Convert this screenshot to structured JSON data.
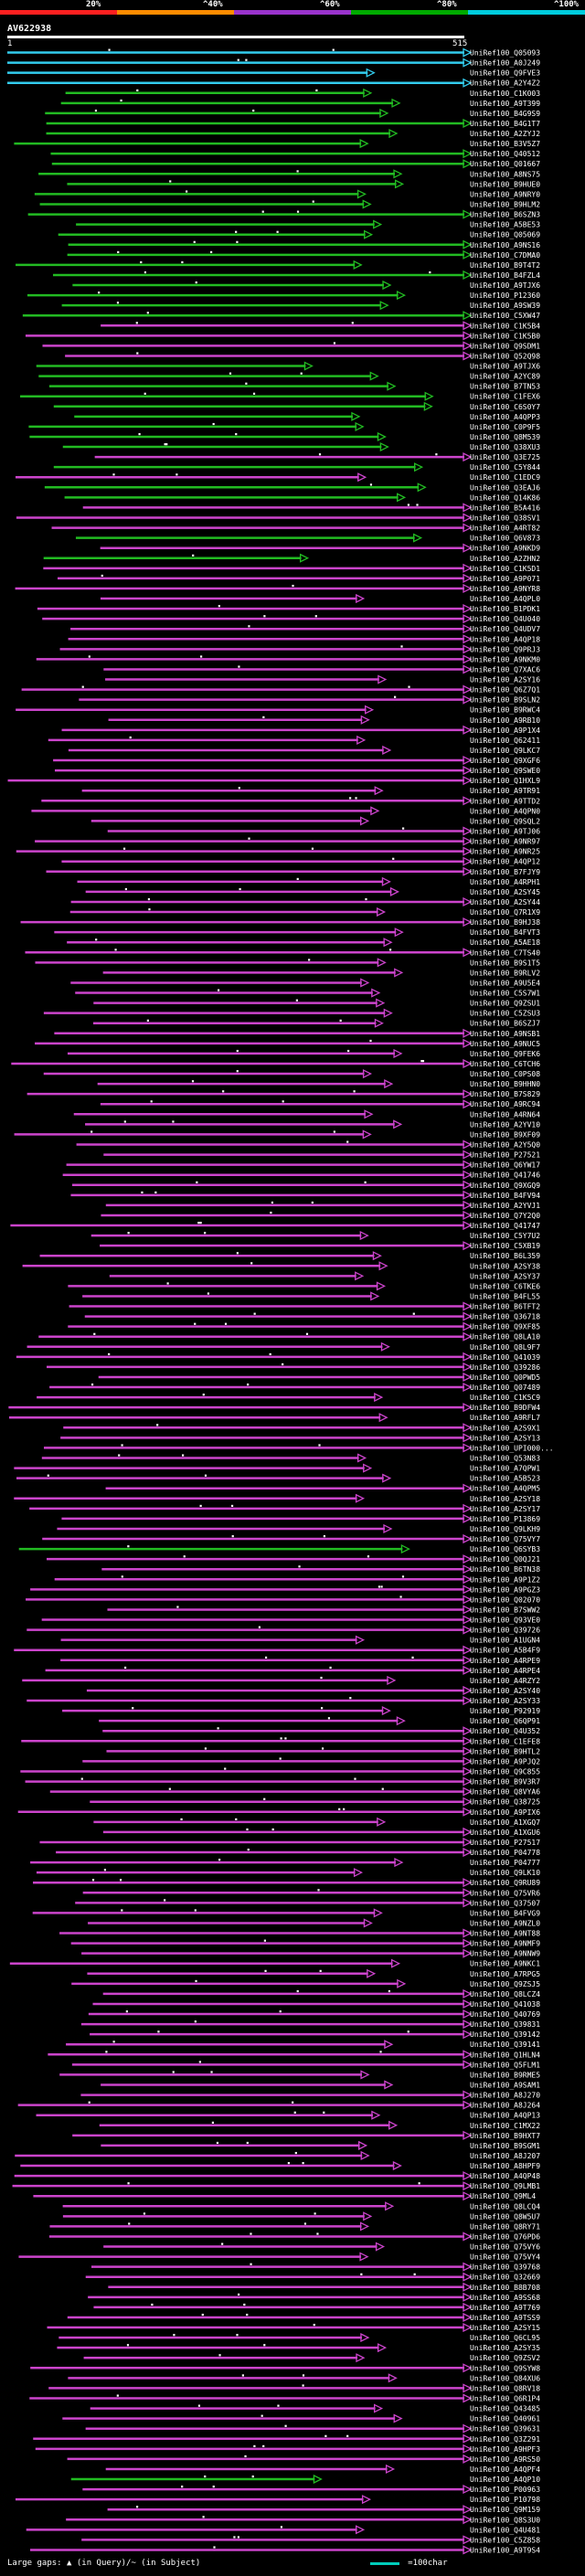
{
  "header": {
    "query_id": "AV622938",
    "query_start": "1",
    "query_end": "515",
    "scale": [
      {
        "label": "20%",
        "color": "#ff2020"
      },
      {
        "label": "^40%",
        "color": "#ff8c00"
      },
      {
        "label": "^60%",
        "color": "#9933cc"
      },
      {
        "label": "^80%",
        "color": "#00aa00"
      },
      {
        "label": "^100%",
        "color": "#00ccdd"
      }
    ]
  },
  "colors": {
    "cyan": "#33ccee",
    "green": "#22bb22",
    "purple": "#cc44cc",
    "query": "#ffffff"
  },
  "legend": {
    "text": "Large gaps: ▲ (in Query)/~ (in Subject)",
    "scale_text": "=100char"
  },
  "hits": [
    {
      "label": "UniRef100_Q05093",
      "color": "cyan"
    },
    {
      "label": "UniRef100_A0J249",
      "color": "cyan"
    },
    {
      "label": "UniRef100_Q9FVE3",
      "color": "cyan"
    },
    {
      "label": "UniRef100_A2Y4Z2",
      "color": "cyan"
    },
    {
      "label": "UniRef100_C1K003",
      "color": "green"
    },
    {
      "label": "UniRef100_A9T399",
      "color": "green"
    },
    {
      "label": "UniRef100_B4G9S9",
      "color": "green"
    },
    {
      "label": "UniRef100_B4G1T7",
      "color": "green"
    },
    {
      "label": "UniRef100_A2ZYJ2",
      "color": "green"
    },
    {
      "label": "UniRef100_B3V5Z7",
      "color": "green"
    },
    {
      "label": "UniRef100_Q40512",
      "color": "green"
    },
    {
      "label": "UniRef100_Q01667",
      "color": "green"
    },
    {
      "label": "UniRef100_A8NS75",
      "color": "green"
    },
    {
      "label": "UniRef100_B9HUE0",
      "color": "green"
    },
    {
      "label": "UniRef100_A9NRY0",
      "color": "green"
    },
    {
      "label": "UniRef100_B9HLM2",
      "color": "green"
    },
    {
      "label": "UniRef100_B6SZN3",
      "color": "green"
    },
    {
      "label": "UniRef100_A5BE53",
      "color": "green"
    },
    {
      "label": "UniRef100_Q05069",
      "color": "green"
    },
    {
      "label": "UniRef100_A9NS16",
      "color": "green"
    },
    {
      "label": "UniRef100_C7DMA0",
      "color": "green"
    },
    {
      "label": "UniRef100_B9T4T2",
      "color": "green"
    },
    {
      "label": "UniRef100_B4FZL4",
      "color": "green"
    },
    {
      "label": "UniRef100_A9TJX6",
      "color": "green"
    },
    {
      "label": "UniRef100_P12360",
      "color": "green"
    },
    {
      "label": "UniRef100_A9SW39",
      "color": "green"
    },
    {
      "label": "UniRef100_C5XW47",
      "color": "green"
    },
    {
      "label": "UniRef100_C1K5B4",
      "color": "purple"
    },
    {
      "label": "UniRef100_C1K5B0",
      "color": "purple"
    },
    {
      "label": "UniRef100_Q9SDM1",
      "color": "purple"
    },
    {
      "label": "UniRef100_Q52Q98",
      "color": "purple"
    },
    {
      "label": "UniRef100_A9TJX6",
      "color": "green"
    },
    {
      "label": "UniRef100_A2YC89",
      "color": "green"
    },
    {
      "label": "UniRef100_B7TN53",
      "color": "green"
    },
    {
      "label": "UniRef100_C1FEX6",
      "color": "green"
    },
    {
      "label": "UniRef100_C6S0Y7",
      "color": "green"
    },
    {
      "label": "UniRef100_A4QPP3",
      "color": "green"
    },
    {
      "label": "UniRef100_C0P9F5",
      "color": "green"
    },
    {
      "label": "UniRef100_Q8M539",
      "color": "green"
    },
    {
      "label": "UniRef100_Q38XU3",
      "color": "green"
    },
    {
      "label": "UniRef100_Q3E725",
      "color": "purple"
    },
    {
      "label": "UniRef100_C5Y844",
      "color": "green"
    },
    {
      "label": "UniRef100_C1EDC9",
      "color": "purple"
    },
    {
      "label": "UniRef100_Q3EAJ6",
      "color": "green"
    },
    {
      "label": "UniRef100_Q14K86",
      "color": "green"
    },
    {
      "label": "UniRef100_B5A416",
      "color": "purple"
    },
    {
      "label": "UniRef100_Q38SV1",
      "color": "purple"
    },
    {
      "label": "UniRef100_A4RT82",
      "color": "purple"
    },
    {
      "label": "UniRef100_Q6V873",
      "color": "green"
    },
    {
      "label": "UniRef100_A9NKD9",
      "color": "purple"
    },
    {
      "label": "UniRef100_A2ZHN2",
      "color": "green"
    },
    {
      "label": "UniRef100_C1K5D1",
      "color": "purple"
    },
    {
      "label": "UniRef100_A9P071",
      "color": "purple"
    },
    {
      "label": "UniRef100_A9NYR8",
      "color": "purple"
    },
    {
      "label": "UniRef100_A4QPL0",
      "color": "purple"
    },
    {
      "label": "UniRef100_B1PDK1",
      "color": "purple"
    },
    {
      "label": "UniRef100_Q4U040",
      "color": "purple"
    },
    {
      "label": "UniRef100_Q4UDV7",
      "color": "purple"
    },
    {
      "label": "UniRef100_A4QP18",
      "color": "purple"
    },
    {
      "label": "UniRef100_Q9PRJ3",
      "color": "purple"
    },
    {
      "label": "UniRef100_A9NKM0",
      "color": "purple"
    },
    {
      "label": "UniRef100_Q7XAC6",
      "color": "purple"
    },
    {
      "label": "UniRef100_A2SY16",
      "color": "purple"
    },
    {
      "label": "UniRef100_Q6Z7Q1",
      "color": "purple"
    },
    {
      "label": "UniRef100_B9SLN2",
      "color": "purple"
    },
    {
      "label": "UniRef100_B9RWC4",
      "color": "purple"
    },
    {
      "label": "UniRef100_A9RB10",
      "color": "purple"
    },
    {
      "label": "UniRef100_A9P1X4",
      "color": "purple"
    },
    {
      "label": "UniRef100_Q62411",
      "color": "purple"
    },
    {
      "label": "UniRef100_Q9LKC7",
      "color": "purple"
    },
    {
      "label": "UniRef100_Q9XGF6",
      "color": "purple"
    },
    {
      "label": "UniRef100_Q9SWE0",
      "color": "purple"
    },
    {
      "label": "UniRef100_Q1HXL9",
      "color": "purple"
    },
    {
      "label": "UniRef100_A9TR91",
      "color": "purple"
    },
    {
      "label": "UniRef100_A9TTD2",
      "color": "purple"
    },
    {
      "label": "UniRef100_A4QPN0",
      "color": "purple"
    },
    {
      "label": "UniRef100_Q9SQL2",
      "color": "purple"
    },
    {
      "label": "UniRef100_A9TJ06",
      "color": "purple"
    },
    {
      "label": "UniRef100_A9NR97",
      "color": "purple"
    },
    {
      "label": "UniRef100_A9NR25",
      "color": "purple"
    },
    {
      "label": "UniRef100_A4QP12",
      "color": "purple"
    },
    {
      "label": "UniRef100_B7FJY9",
      "color": "purple"
    },
    {
      "label": "UniRef100_A4RPH1",
      "color": "purple"
    },
    {
      "label": "UniRef100_A2SY45",
      "color": "purple"
    },
    {
      "label": "UniRef100_A2SY44",
      "color": "purple"
    },
    {
      "label": "UniRef100_Q7R1X9",
      "color": "purple"
    },
    {
      "label": "UniRef100_B9HJ38",
      "color": "purple"
    },
    {
      "label": "UniRef100_B4FVT3",
      "color": "purple"
    },
    {
      "label": "UniRef100_A5AE18",
      "color": "purple"
    },
    {
      "label": "UniRef100_C7TS40",
      "color": "purple"
    },
    {
      "label": "UniRef100_B9S1T5",
      "color": "purple"
    },
    {
      "label": "UniRef100_B9RLV2",
      "color": "purple"
    },
    {
      "label": "UniRef100_A9U5E4",
      "color": "purple"
    },
    {
      "label": "UniRef100_C5S7W1",
      "color": "purple"
    },
    {
      "label": "UniRef100_Q9ZSU1",
      "color": "purple"
    },
    {
      "label": "UniRef100_C5ZSU3",
      "color": "purple"
    },
    {
      "label": "UniRef100_B6SZJ7",
      "color": "purple"
    },
    {
      "label": "UniRef100_A9NSB1",
      "color": "purple"
    },
    {
      "label": "UniRef100_A9NUC5",
      "color": "purple"
    },
    {
      "label": "UniRef100_Q9FEK6",
      "color": "purple"
    },
    {
      "label": "UniRef100_C6TCH6",
      "color": "purple"
    },
    {
      "label": "UniRef100_C0PS08",
      "color": "purple"
    },
    {
      "label": "UniRef100_B9HHN0",
      "color": "purple"
    },
    {
      "label": "UniRef100_B7S829",
      "color": "purple"
    },
    {
      "label": "UniRef100_A9RC94",
      "color": "purple"
    },
    {
      "label": "UniRef100_A4RN64",
      "color": "purple"
    },
    {
      "label": "UniRef100_A2YV10",
      "color": "purple"
    },
    {
      "label": "UniRef100_B9XF09",
      "color": "purple"
    },
    {
      "label": "UniRef100_A2Y5Q0",
      "color": "purple"
    },
    {
      "label": "UniRef100_P27521",
      "color": "purple"
    },
    {
      "label": "UniRef100_Q6YW17",
      "color": "purple"
    },
    {
      "label": "UniRef100_Q41746",
      "color": "purple"
    },
    {
      "label": "UniRef100_Q9XGQ9",
      "color": "purple"
    },
    {
      "label": "UniRef100_B4FV94",
      "color": "purple"
    },
    {
      "label": "UniRef100_A2YVJ1",
      "color": "purple"
    },
    {
      "label": "UniRef100_Q7Y2Q0",
      "color": "purple"
    },
    {
      "label": "UniRef100_Q41747",
      "color": "purple"
    },
    {
      "label": "UniRef100_C5Y7U2",
      "color": "purple"
    },
    {
      "label": "UniRef100_C5XB19",
      "color": "purple"
    },
    {
      "label": "UniRef100_B6L359",
      "color": "purple"
    },
    {
      "label": "UniRef100_A2SY38",
      "color": "purple"
    },
    {
      "label": "UniRef100_A2SY37",
      "color": "purple"
    },
    {
      "label": "UniRef100_C6TKE6",
      "color": "purple"
    },
    {
      "label": "UniRef100_B4FL55",
      "color": "purple"
    },
    {
      "label": "UniRef100_B6TFT2",
      "color": "purple"
    },
    {
      "label": "UniRef100_Q36718",
      "color": "purple"
    },
    {
      "label": "UniRef100_Q9XF85",
      "color": "purple"
    },
    {
      "label": "UniRef100_Q8LA10",
      "color": "purple"
    },
    {
      "label": "UniRef100_Q8L9F7",
      "color": "purple"
    },
    {
      "label": "UniRef100_Q41039",
      "color": "purple"
    },
    {
      "label": "UniRef100_Q39286",
      "color": "purple"
    },
    {
      "label": "UniRef100_Q0PWD5",
      "color": "purple"
    },
    {
      "label": "UniRef100_Q07489",
      "color": "purple"
    },
    {
      "label": "UniRef100_C1K5C9",
      "color": "purple"
    },
    {
      "label": "UniRef100_B9DFW4",
      "color": "purple"
    },
    {
      "label": "UniRef100_A9RFL7",
      "color": "purple"
    },
    {
      "label": "UniRef100_A2S9X1",
      "color": "purple"
    },
    {
      "label": "UniRef100_A2SY13",
      "color": "purple"
    },
    {
      "label": "UniRef100_UPI000...",
      "color": "purple"
    },
    {
      "label": "UniRef100_Q53N83",
      "color": "purple"
    },
    {
      "label": "UniRef100_A7QPW1",
      "color": "purple"
    },
    {
      "label": "UniRef100_A5B523",
      "color": "purple"
    },
    {
      "label": "UniRef100_A4QPM5",
      "color": "purple"
    },
    {
      "label": "UniRef100_A2SY18",
      "color": "purple"
    },
    {
      "label": "UniRef100_A2SY17",
      "color": "purple"
    },
    {
      "label": "UniRef100_P13869",
      "color": "purple"
    },
    {
      "label": "UniRef100_Q9LKH9",
      "color": "purple"
    },
    {
      "label": "UniRef100_Q75VY7",
      "color": "purple"
    },
    {
      "label": "UniRef100_Q6SYB3",
      "color": "green"
    },
    {
      "label": "UniRef100_Q0QJ21",
      "color": "purple"
    },
    {
      "label": "UniRef100_B6TN38",
      "color": "purple"
    },
    {
      "label": "UniRef100_A9P1Z2",
      "color": "purple"
    },
    {
      "label": "UniRef100_A9PGZ3",
      "color": "purple"
    },
    {
      "label": "UniRef100_Q02070",
      "color": "purple"
    },
    {
      "label": "UniRef100_B7SWW2",
      "color": "purple"
    },
    {
      "label": "UniRef100_Q93VE0",
      "color": "purple"
    },
    {
      "label": "UniRef100_Q39726",
      "color": "purple"
    },
    {
      "label": "UniRef100_A1UGN4",
      "color": "purple"
    },
    {
      "label": "UniRef100_A5B4F9",
      "color": "purple"
    },
    {
      "label": "UniRef100_A4RPE9",
      "color": "purple"
    },
    {
      "label": "UniRef100_A4RPE4",
      "color": "purple"
    },
    {
      "label": "UniRef100_A4RZY2",
      "color": "purple"
    },
    {
      "label": "UniRef100_A2SY40",
      "color": "purple"
    },
    {
      "label": "UniRef100_A2SY33",
      "color": "purple"
    },
    {
      "label": "UniRef100_P92919",
      "color": "purple"
    },
    {
      "label": "UniRef100_Q6QP91",
      "color": "purple"
    },
    {
      "label": "UniRef100_Q4U352",
      "color": "purple"
    },
    {
      "label": "UniRef100_C1EFE8",
      "color": "purple"
    },
    {
      "label": "UniRef100_B9HTL2",
      "color": "purple"
    },
    {
      "label": "UniRef100_A9PJQ2",
      "color": "purple"
    },
    {
      "label": "UniRef100_Q9C855",
      "color": "purple"
    },
    {
      "label": "UniRef100_B9V3R7",
      "color": "purple"
    },
    {
      "label": "UniRef100_Q8VYA6",
      "color": "purple"
    },
    {
      "label": "UniRef100_Q38725",
      "color": "purple"
    },
    {
      "label": "UniRef100_A9PIX6",
      "color": "purple"
    },
    {
      "label": "UniRef100_A1XGQ7",
      "color": "purple"
    },
    {
      "label": "UniRef100_A1XGU6",
      "color": "purple"
    },
    {
      "label": "UniRef100_P27517",
      "color": "purple"
    },
    {
      "label": "UniRef100_P04778",
      "color": "purple"
    },
    {
      "label": "UniRef100_P04777",
      "color": "purple"
    },
    {
      "label": "UniRef100_Q9LK10",
      "color": "purple"
    },
    {
      "label": "UniRef100_Q9RU89",
      "color": "purple"
    },
    {
      "label": "UniRef100_Q75VR6",
      "color": "purple"
    },
    {
      "label": "UniRef100_Q37507",
      "color": "purple"
    },
    {
      "label": "UniRef100_B4FVG9",
      "color": "purple"
    },
    {
      "label": "UniRef100_A9NZL0",
      "color": "purple"
    },
    {
      "label": "UniRef100_A9NT88",
      "color": "purple"
    },
    {
      "label": "UniRef100_A9NMF9",
      "color": "purple"
    },
    {
      "label": "UniRef100_A9NNW9",
      "color": "purple"
    },
    {
      "label": "UniRef100_A9NKC1",
      "color": "purple"
    },
    {
      "label": "UniRef100_A7RPG5",
      "color": "purple"
    },
    {
      "label": "UniRef100_Q9ZSJ5",
      "color": "purple"
    },
    {
      "label": "UniRef100_Q8LCZ4",
      "color": "purple"
    },
    {
      "label": "UniRef100_Q41038",
      "color": "purple"
    },
    {
      "label": "UniRef100_Q40769",
      "color": "purple"
    },
    {
      "label": "UniRef100_Q39831",
      "color": "purple"
    },
    {
      "label": "UniRef100_Q39142",
      "color": "purple"
    },
    {
      "label": "UniRef100_Q39141",
      "color": "purple"
    },
    {
      "label": "UniRef100_Q1HLN4",
      "color": "purple"
    },
    {
      "label": "UniRef100_Q5FLM1",
      "color": "purple"
    },
    {
      "label": "UniRef100_B9RME5",
      "color": "purple"
    },
    {
      "label": "UniRef100_A9SAM1",
      "color": "purple"
    },
    {
      "label": "UniRef100_A8J270",
      "color": "purple"
    },
    {
      "label": "UniRef100_A8J264",
      "color": "purple"
    },
    {
      "label": "UniRef100_A4QP13",
      "color": "purple"
    },
    {
      "label": "UniRef100_C1MX22",
      "color": "purple"
    },
    {
      "label": "UniRef100_B9HXT7",
      "color": "purple"
    },
    {
      "label": "UniRef100_B9SGM1",
      "color": "purple"
    },
    {
      "label": "UniRef100_A8J207",
      "color": "purple"
    },
    {
      "label": "UniRef100_A8HPF9",
      "color": "purple"
    },
    {
      "label": "UniRef100_A4QP48",
      "color": "purple"
    },
    {
      "label": "UniRef100_Q9LMB1",
      "color": "purple"
    },
    {
      "label": "UniRef100_Q9ML4",
      "color": "purple"
    },
    {
      "label": "UniRef100_Q8LCQ4",
      "color": "purple"
    },
    {
      "label": "UniRef100_Q8W5U7",
      "color": "purple"
    },
    {
      "label": "UniRef100_Q8RY71",
      "color": "purple"
    },
    {
      "label": "UniRef100_Q76PD6",
      "color": "purple"
    },
    {
      "label": "UniRef100_Q75VY6",
      "color": "purple"
    },
    {
      "label": "UniRef100_Q75VY4",
      "color": "purple"
    },
    {
      "label": "UniRef100_Q39768",
      "color": "purple"
    },
    {
      "label": "UniRef100_Q32669",
      "color": "purple"
    },
    {
      "label": "UniRef100_B8B708",
      "color": "purple"
    },
    {
      "label": "UniRef100_A9SS68",
      "color": "purple"
    },
    {
      "label": "UniRef100_A9T769",
      "color": "purple"
    },
    {
      "label": "UniRef100_A9TSS9",
      "color": "purple"
    },
    {
      "label": "UniRef100_A2SY15",
      "color": "purple"
    },
    {
      "label": "UniRef100_Q6CL95",
      "color": "purple"
    },
    {
      "label": "UniRef100_A2SY35",
      "color": "purple"
    },
    {
      "label": "UniRef100_Q9ZSV2",
      "color": "purple"
    },
    {
      "label": "UniRef100_Q9SYW8",
      "color": "purple"
    },
    {
      "label": "UniRef100_Q84XU6",
      "color": "purple"
    },
    {
      "label": "UniRef100_Q8RV18",
      "color": "purple"
    },
    {
      "label": "UniRef100_Q6R1P4",
      "color": "purple"
    },
    {
      "label": "UniRef100_Q43485",
      "color": "purple"
    },
    {
      "label": "UniRef100_Q40961",
      "color": "purple"
    },
    {
      "label": "UniRef100_Q39631",
      "color": "purple"
    },
    {
      "label": "UniRef100_Q3Z291",
      "color": "purple"
    },
    {
      "label": "UniRef100_A9HPF3",
      "color": "purple"
    },
    {
      "label": "UniRef100_A9RS50",
      "color": "purple"
    },
    {
      "label": "UniRef100_A4QPF4",
      "color": "purple"
    },
    {
      "label": "UniRef100_A4QP10",
      "color": "green"
    },
    {
      "label": "UniRef100_P00963",
      "color": "purple"
    },
    {
      "label": "UniRef100_P10798",
      "color": "purple"
    },
    {
      "label": "UniRef100_Q9M159",
      "color": "purple"
    },
    {
      "label": "UniRef100_Q8S3U0",
      "color": "purple"
    },
    {
      "label": "UniRef100_Q4U481",
      "color": "purple"
    },
    {
      "label": "UniRef100_C5Z858",
      "color": "purple"
    },
    {
      "label": "UniRef100_A9T9S4",
      "color": "purple"
    }
  ]
}
